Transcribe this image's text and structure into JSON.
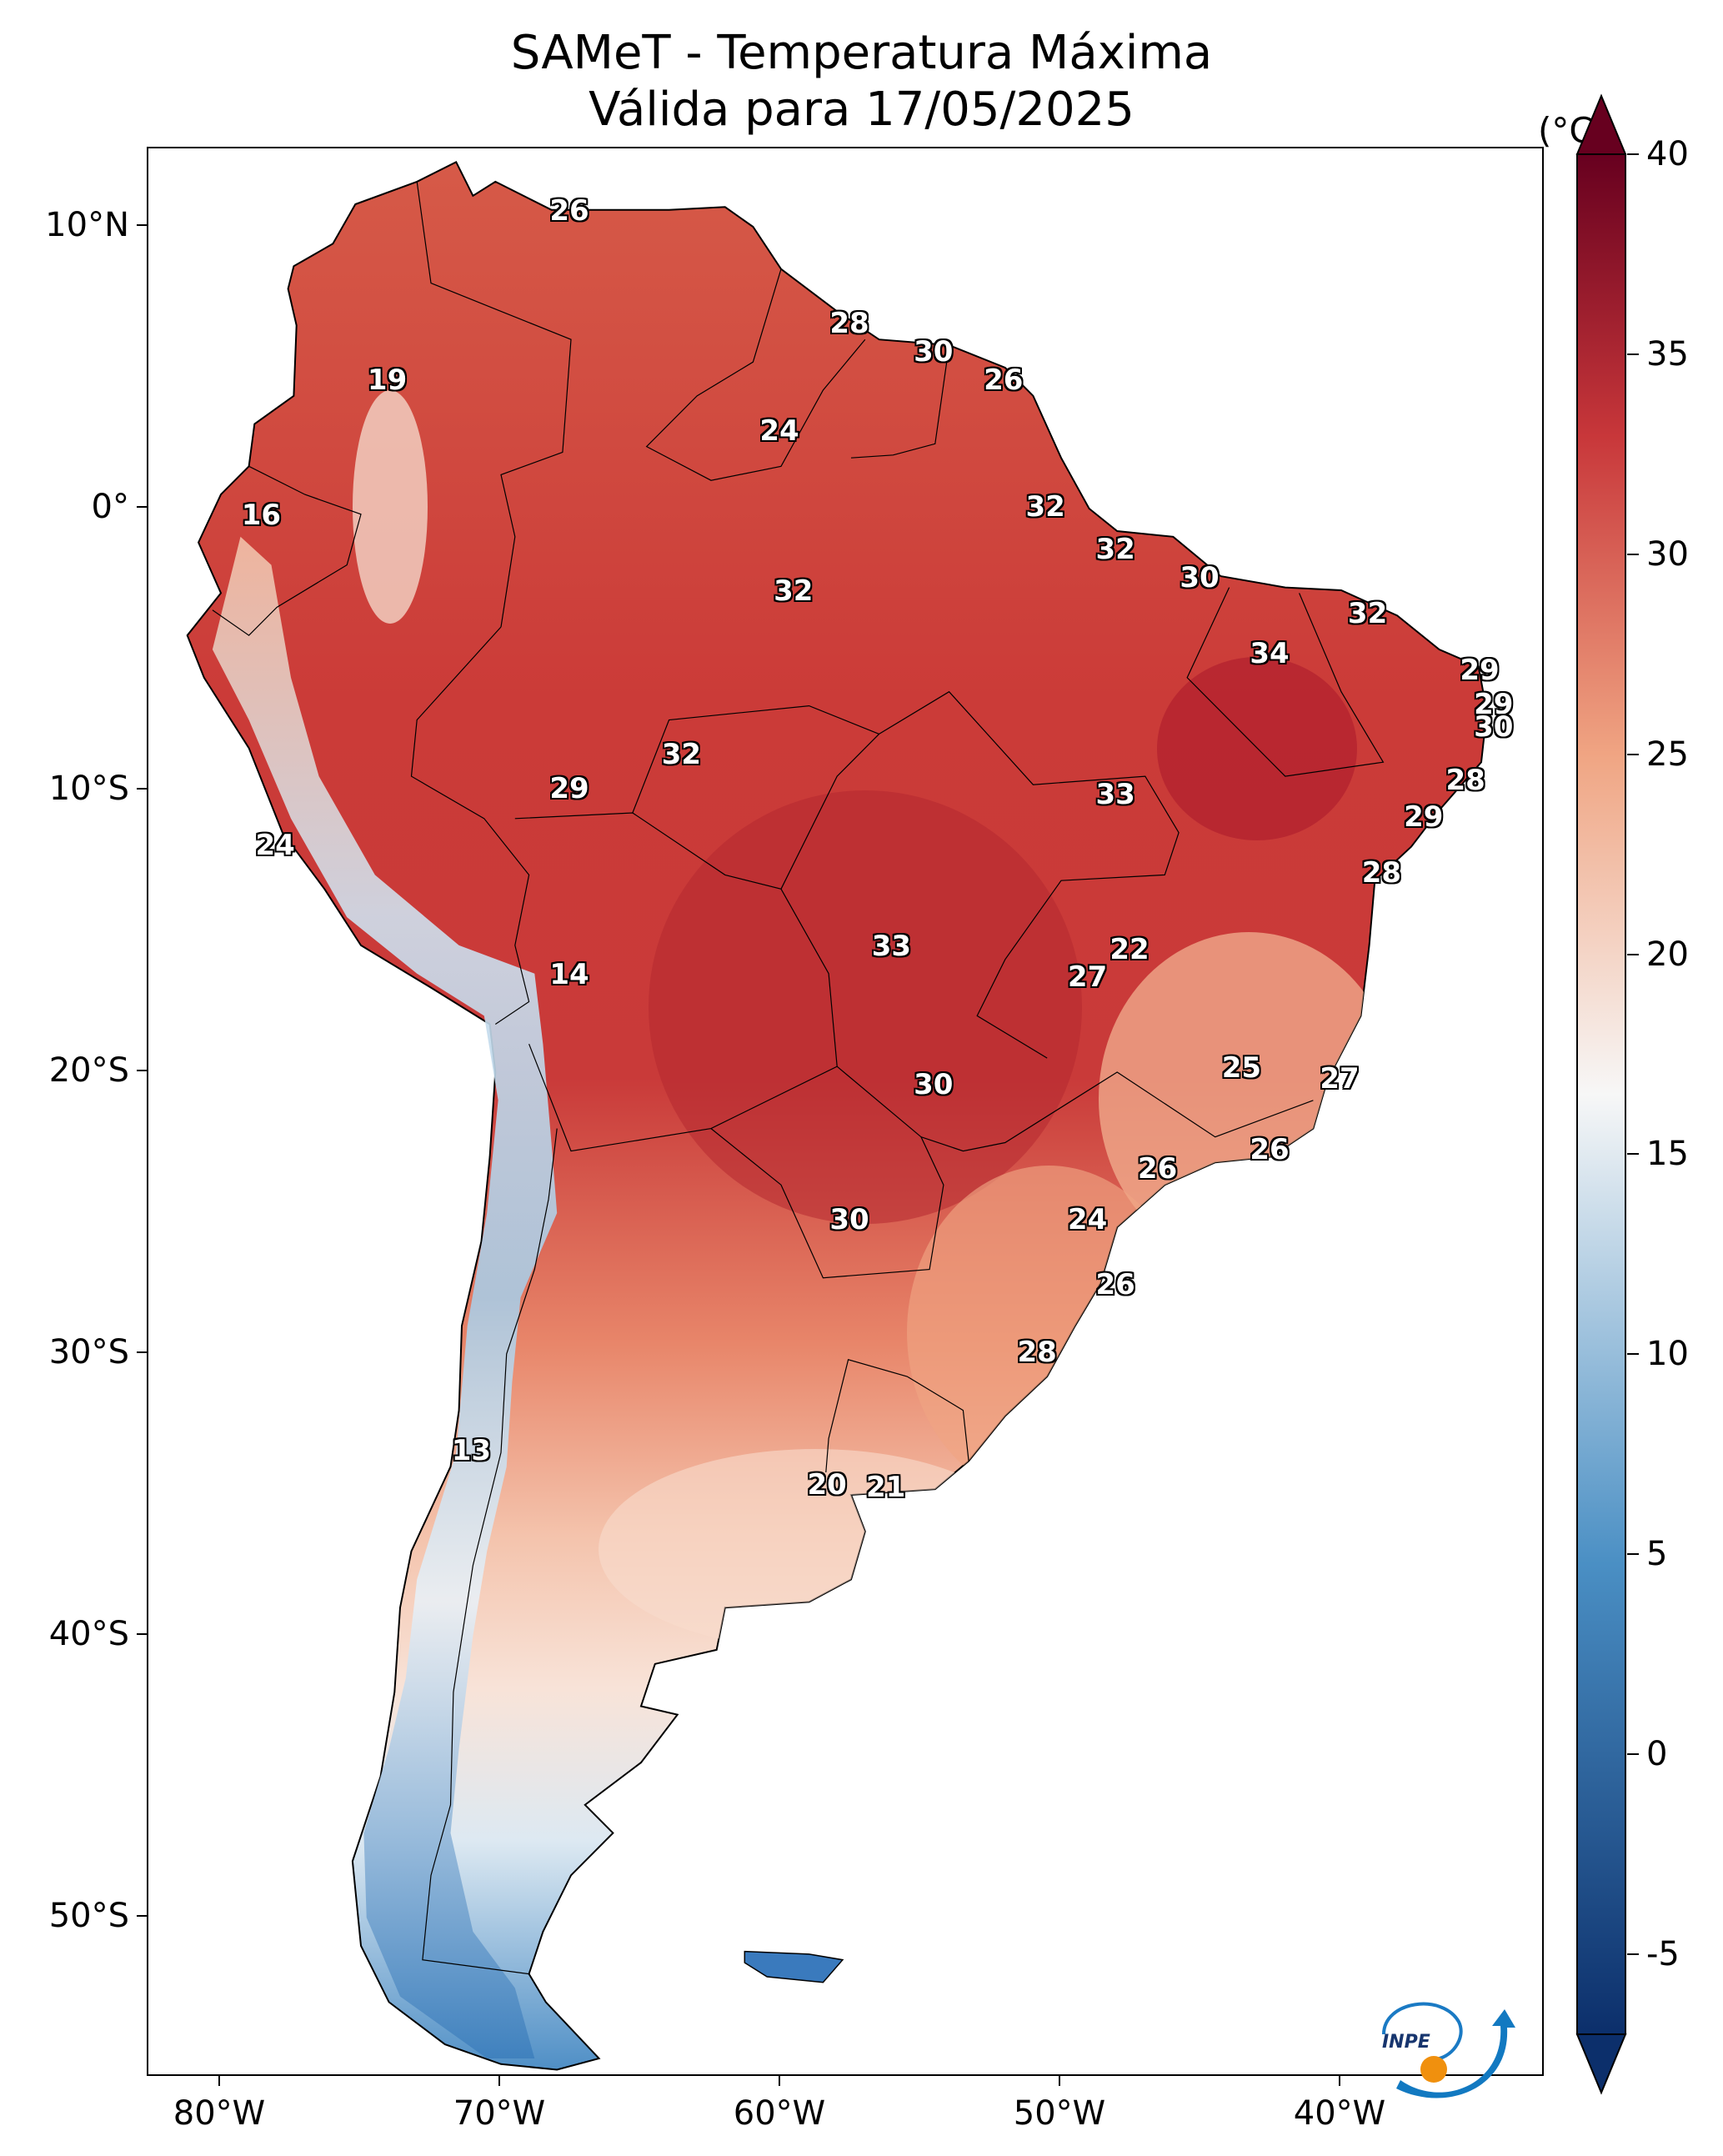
{
  "title": {
    "line1": "SAMeT - Temperatura Máxima",
    "line2": "Válida para 17/05/2025"
  },
  "axes": {
    "latitude_labels": [
      "10°N",
      "0°",
      "10°S",
      "20°S",
      "30°S",
      "40°S",
      "50°S"
    ],
    "longitude_labels": [
      "80°W",
      "70°W",
      "60°W",
      "50°W",
      "40°W"
    ]
  },
  "colorbar": {
    "unit": "(°C)",
    "min": -7,
    "max": 40,
    "ticks": [
      "40",
      "35",
      "30",
      "25",
      "20",
      "15",
      "10",
      "5",
      "0",
      "-5"
    ],
    "colors": {
      "cold": "#0c2f6b",
      "cool": "#4a8fc4",
      "neutral": "#f7f7f7",
      "warm": "#f0a583",
      "hot": "#c8373a",
      "extreme": "#67001f"
    }
  },
  "logo": {
    "text": "INPE"
  },
  "temperature_labels": [
    {
      "value": "26",
      "lon": -67.5,
      "lat": 10.5
    },
    {
      "value": "28",
      "lon": -57.5,
      "lat": 6.5
    },
    {
      "value": "30",
      "lon": -54.5,
      "lat": 5.5
    },
    {
      "value": "26",
      "lon": -52.0,
      "lat": 4.5
    },
    {
      "value": "19",
      "lon": -74.0,
      "lat": 4.5
    },
    {
      "value": "24",
      "lon": -60.0,
      "lat": 2.7
    },
    {
      "value": "16",
      "lon": -78.5,
      "lat": -0.3
    },
    {
      "value": "32",
      "lon": -50.5,
      "lat": 0.0
    },
    {
      "value": "32",
      "lon": -48.0,
      "lat": -1.5
    },
    {
      "value": "30",
      "lon": -45.0,
      "lat": -2.5
    },
    {
      "value": "32",
      "lon": -59.5,
      "lat": -3.0
    },
    {
      "value": "32",
      "lon": -39.0,
      "lat": -3.8
    },
    {
      "value": "34",
      "lon": -42.5,
      "lat": -5.2
    },
    {
      "value": "29",
      "lon": -35.0,
      "lat": -5.8
    },
    {
      "value": "29",
      "lon": -34.5,
      "lat": -7.0
    },
    {
      "value": "30",
      "lon": -34.5,
      "lat": -7.8
    },
    {
      "value": "32",
      "lon": -63.5,
      "lat": -8.8
    },
    {
      "value": "28",
      "lon": -35.5,
      "lat": -9.7
    },
    {
      "value": "29",
      "lon": -67.5,
      "lat": -10.0
    },
    {
      "value": "33",
      "lon": -48.0,
      "lat": -10.2
    },
    {
      "value": "29",
      "lon": -37.0,
      "lat": -11.0
    },
    {
      "value": "24",
      "lon": -78.0,
      "lat": -12.0
    },
    {
      "value": "28",
      "lon": -38.5,
      "lat": -13.0
    },
    {
      "value": "33",
      "lon": -56.0,
      "lat": -15.6
    },
    {
      "value": "22",
      "lon": -47.5,
      "lat": -15.7
    },
    {
      "value": "27",
      "lon": -49.0,
      "lat": -16.7
    },
    {
      "value": "14",
      "lon": -67.5,
      "lat": -16.6
    },
    {
      "value": "25",
      "lon": -43.5,
      "lat": -19.9
    },
    {
      "value": "27",
      "lon": -40.0,
      "lat": -20.3
    },
    {
      "value": "30",
      "lon": -54.5,
      "lat": -20.5
    },
    {
      "value": "26",
      "lon": -42.5,
      "lat": -22.8
    },
    {
      "value": "26",
      "lon": -46.5,
      "lat": -23.5
    },
    {
      "value": "30",
      "lon": -57.5,
      "lat": -25.3
    },
    {
      "value": "24",
      "lon": -49.0,
      "lat": -25.3
    },
    {
      "value": "26",
      "lon": -48.0,
      "lat": -27.6
    },
    {
      "value": "28",
      "lon": -50.8,
      "lat": -30.0
    },
    {
      "value": "13",
      "lon": -71.0,
      "lat": -33.5
    },
    {
      "value": "20",
      "lon": -58.3,
      "lat": -34.7
    },
    {
      "value": "21",
      "lon": -56.2,
      "lat": -34.8
    }
  ]
}
